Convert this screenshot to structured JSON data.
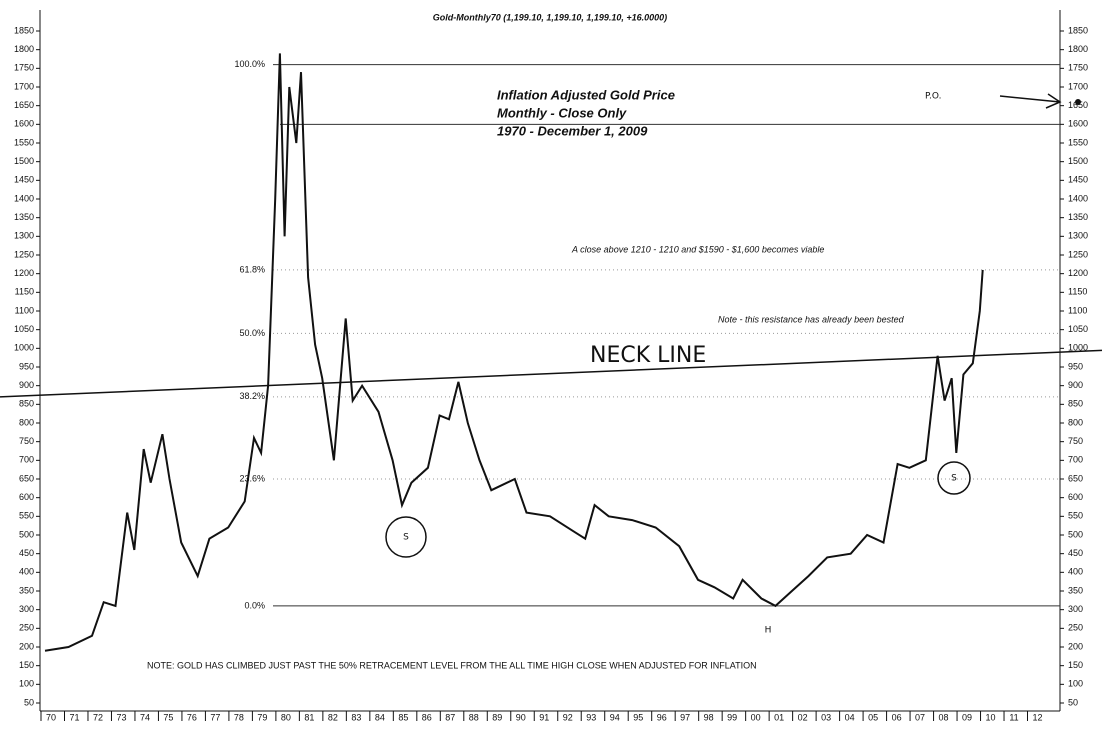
{
  "chart_data": {
    "type": "line",
    "header": "Gold-Monthly70 (1,199.10, 1,199.10, 1,199.10, +16.0000)",
    "title": [
      "Inflation Adjusted Gold Price",
      "Monthly - Close Only",
      "1970 - December 1, 2009"
    ],
    "annotations": [
      "A close above 1210 - 1210 and $1590 - $1,600 becomes viable",
      "Note - this resistance has already been bested",
      "NOTE: GOLD HAS CLIMBED JUST PAST THE 50% RETRACEMENT LEVEL FROM THE ALL TIME HIGH CLOSE WHEN ADJUSTED FOR INFLATION",
      "P.O.",
      "S",
      "S",
      "H"
    ],
    "series": [
      {
        "name": "Gold-Monthly70",
        "color": "#111111",
        "x": [
          1970,
          1971,
          1972,
          1972.5,
          1973,
          1973.5,
          1973.8,
          1974.2,
          1974.5,
          1975,
          1975.3,
          1975.8,
          1976.5,
          1977,
          1977.8,
          1978.5,
          1978.9,
          1979.2,
          1979.5,
          1979.8,
          1980.0,
          1980.2,
          1980.4,
          1980.7,
          1980.9,
          1981.2,
          1981.5,
          1981.8,
          1982.3,
          1982.8,
          1983.1,
          1983.5,
          1984.2,
          1984.8,
          1985.2,
          1985.6,
          1986.3,
          1986.8,
          1987.2,
          1987.6,
          1988,
          1988.5,
          1989,
          1990,
          1990.5,
          1991.5,
          1992.5,
          1993,
          1993.4,
          1994,
          1995,
          1996,
          1997,
          1997.8,
          1998.5,
          1999.3,
          1999.7,
          2000.5,
          2001.1,
          2001.8,
          2002.5,
          2003.3,
          2004.3,
          2005,
          2005.7,
          2006.3,
          2006.8,
          2007.5,
          2008,
          2008.3,
          2008.6,
          2008.8,
          2009.1,
          2009.5,
          2009.8,
          2009.92
        ],
        "values": [
          190,
          200,
          230,
          320,
          310,
          560,
          460,
          730,
          640,
          770,
          650,
          480,
          390,
          490,
          520,
          590,
          760,
          720,
          900,
          1400,
          1790,
          1300,
          1700,
          1550,
          1740,
          1190,
          1010,
          920,
          700,
          1080,
          860,
          900,
          830,
          700,
          580,
          640,
          680,
          820,
          810,
          910,
          800,
          700,
          620,
          650,
          560,
          550,
          510,
          490,
          580,
          550,
          540,
          520,
          470,
          380,
          360,
          330,
          380,
          330,
          310,
          350,
          390,
          440,
          450,
          500,
          480,
          690,
          680,
          700,
          980,
          860,
          920,
          720,
          930,
          960,
          1100,
          1210
        ]
      }
    ],
    "levels": [
      {
        "value": 1760,
        "label": "100.0%"
      },
      {
        "value": 1210,
        "label": "61.8%"
      },
      {
        "value": 1040,
        "label": "50.0%"
      },
      {
        "value": 870,
        "label": "38.2%"
      },
      {
        "value": 650,
        "label": "23.6%"
      },
      {
        "value": 310,
        "label": "0.0%"
      }
    ],
    "target_line": 1600,
    "neckline": {
      "label": "NECK LINE",
      "x": [
        1970,
        2013
      ],
      "values": [
        870,
        1000
      ]
    },
    "xlim": [
      1970,
      2013
    ],
    "xticks": [
      {
        "value": 1970,
        "label": "70"
      },
      {
        "value": 1971,
        "label": "71"
      },
      {
        "value": 1972,
        "label": "72"
      },
      {
        "value": 1973,
        "label": "73"
      },
      {
        "value": 1974,
        "label": "74"
      },
      {
        "value": 1975,
        "label": "75"
      },
      {
        "value": 1976,
        "label": "76"
      },
      {
        "value": 1977,
        "label": "77"
      },
      {
        "value": 1978,
        "label": "78"
      },
      {
        "value": 1979,
        "label": "79"
      },
      {
        "value": 1980,
        "label": "80"
      },
      {
        "value": 1981,
        "label": "81"
      },
      {
        "value": 1982,
        "label": "82"
      },
      {
        "value": 1983,
        "label": "83"
      },
      {
        "value": 1984,
        "label": "84"
      },
      {
        "value": 1985,
        "label": "85"
      },
      {
        "value": 1986,
        "label": "86"
      },
      {
        "value": 1987,
        "label": "87"
      },
      {
        "value": 1988,
        "label": "88"
      },
      {
        "value": 1989,
        "label": "89"
      },
      {
        "value": 1990,
        "label": "90"
      },
      {
        "value": 1991,
        "label": "91"
      },
      {
        "value": 1992,
        "label": "92"
      },
      {
        "value": 1993,
        "label": "93"
      },
      {
        "value": 1994,
        "label": "94"
      },
      {
        "value": 1995,
        "label": "95"
      },
      {
        "value": 1996,
        "label": "96"
      },
      {
        "value": 1997,
        "label": "97"
      },
      {
        "value": 1998,
        "label": "98"
      },
      {
        "value": 1999,
        "label": "99"
      },
      {
        "value": 2000,
        "label": "00"
      },
      {
        "value": 2001,
        "label": "01"
      },
      {
        "value": 2002,
        "label": "02"
      },
      {
        "value": 2003,
        "label": "03"
      },
      {
        "value": 2004,
        "label": "04"
      },
      {
        "value": 2005,
        "label": "05"
      },
      {
        "value": 2006,
        "label": "06"
      },
      {
        "value": 2007,
        "label": "07"
      },
      {
        "value": 2008,
        "label": "08"
      },
      {
        "value": 2009,
        "label": "09"
      },
      {
        "value": 2010,
        "label": "10"
      },
      {
        "value": 2011,
        "label": "11"
      },
      {
        "value": 2012,
        "label": "12"
      }
    ],
    "ylim": [
      50,
      1850
    ],
    "yticks": [
      50,
      100,
      150,
      200,
      250,
      300,
      350,
      400,
      450,
      500,
      550,
      600,
      650,
      700,
      750,
      800,
      850,
      900,
      950,
      1000,
      1050,
      1100,
      1150,
      1200,
      1250,
      1300,
      1350,
      1400,
      1450,
      1500,
      1550,
      1600,
      1650,
      1700,
      1750,
      1800,
      1850
    ]
  }
}
